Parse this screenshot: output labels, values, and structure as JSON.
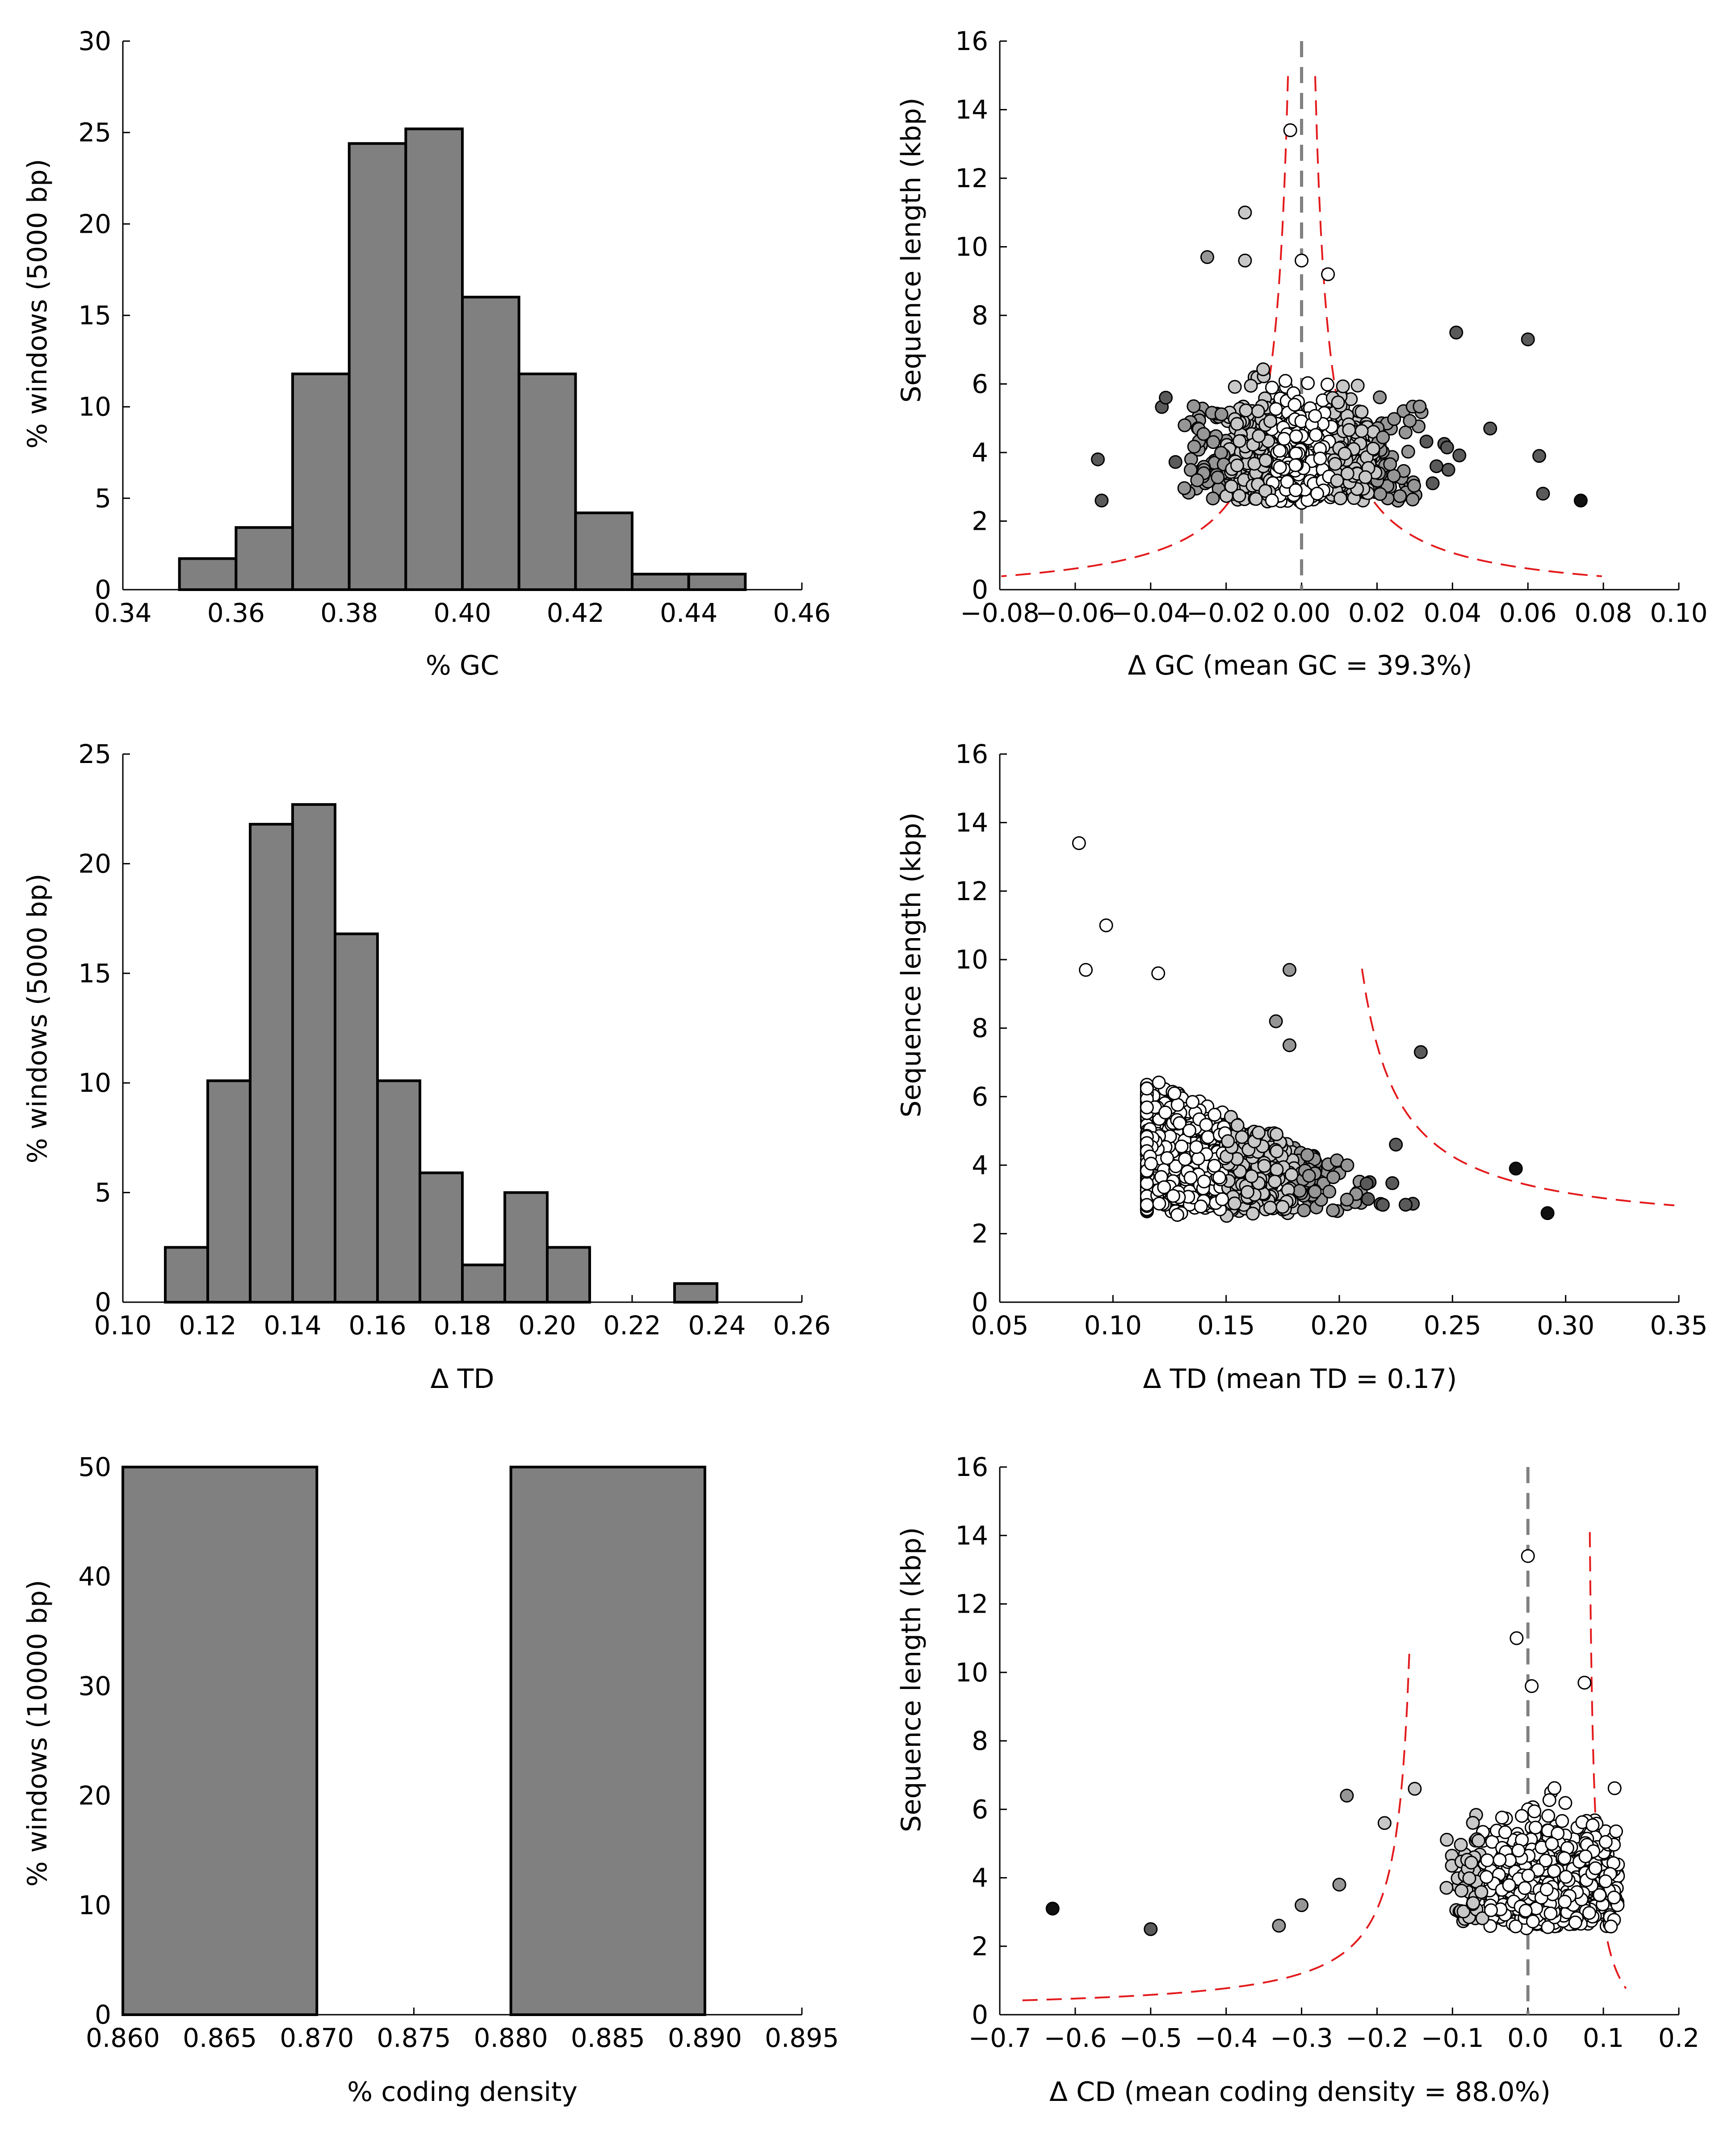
{
  "figure": {
    "description_free": true
  },
  "chart_data": [
    {
      "id": "gc-hist",
      "type": "bar",
      "xlabel": "% GC",
      "ylabel": "% windows (5000 bp)",
      "xlim": [
        0.34,
        0.46
      ],
      "ylim": [
        0,
        30
      ],
      "xticks": [
        0.34,
        0.36,
        0.38,
        0.4,
        0.42,
        0.44,
        0.46
      ],
      "xtick_labels": [
        "0.34",
        "0.36",
        "0.38",
        "0.40",
        "0.42",
        "0.44",
        "0.46"
      ],
      "yticks": [
        0,
        5,
        10,
        15,
        20,
        25,
        30
      ],
      "ytick_labels": [
        "0",
        "5",
        "10",
        "15",
        "20",
        "25",
        "30"
      ],
      "bin_edges": [
        0.35,
        0.36,
        0.37,
        0.38,
        0.39,
        0.4,
        0.41,
        0.42,
        0.43,
        0.44,
        0.45
      ],
      "values": [
        1.7,
        3.4,
        11.8,
        24.4,
        25.2,
        16.0,
        11.8,
        4.2,
        0.85,
        0.85
      ],
      "bar_color": "#808080"
    },
    {
      "id": "gc-scatter",
      "type": "scatter",
      "xlabel": "Δ GC (mean GC = 39.3%)",
      "ylabel": "Sequence length (kbp)",
      "xlim": [
        -0.08,
        0.1
      ],
      "ylim": [
        0,
        16
      ],
      "xticks": [
        -0.08,
        -0.06,
        -0.04,
        -0.02,
        0.0,
        0.02,
        0.04,
        0.06,
        0.08,
        0.1
      ],
      "xtick_labels": [
        "−0.08",
        "−0.06",
        "−0.04",
        "−0.02",
        "0.00",
        "0.02",
        "0.04",
        "0.06",
        "0.08",
        "0.10"
      ],
      "yticks": [
        0,
        2,
        4,
        6,
        8,
        10,
        12,
        14,
        16
      ],
      "ytick_labels": [
        "0",
        "2",
        "4",
        "6",
        "8",
        "10",
        "12",
        "14",
        "16"
      ],
      "notable_points": [
        {
          "x": -0.003,
          "y": 13.4,
          "shade": "white"
        },
        {
          "x": -0.015,
          "y": 11.0,
          "shade": "lightgray"
        },
        {
          "x": -0.025,
          "y": 9.7,
          "shade": "gray"
        },
        {
          "x": -0.015,
          "y": 9.6,
          "shade": "lightgray"
        },
        {
          "x": 0.0,
          "y": 9.6,
          "shade": "white"
        },
        {
          "x": 0.007,
          "y": 9.2,
          "shade": "white"
        },
        {
          "x": 0.041,
          "y": 7.5,
          "shade": "darkgray"
        },
        {
          "x": 0.06,
          "y": 7.3,
          "shade": "darkgray"
        },
        {
          "x": 0.074,
          "y": 2.6,
          "shade": "black"
        },
        {
          "x": -0.054,
          "y": 3.8,
          "shade": "darkgray"
        },
        {
          "x": -0.053,
          "y": 2.6,
          "shade": "darkgray"
        },
        {
          "x": -0.036,
          "y": 5.6,
          "shade": "darkgray"
        },
        {
          "x": 0.05,
          "y": 4.7,
          "shade": "darkgray"
        },
        {
          "x": 0.063,
          "y": 3.9,
          "shade": "darkgray"
        },
        {
          "x": 0.064,
          "y": 2.8,
          "shade": "darkgray"
        }
      ],
      "cluster": {
        "x_range": [
          -0.04,
          0.04
        ],
        "y_range": [
          2.5,
          7.2
        ],
        "x_center": 0.0
      },
      "vline": 0.0,
      "threshold_curve": "y = k / |x|",
      "threshold_color": "#e31a1c"
    },
    {
      "id": "td-hist",
      "type": "bar",
      "xlabel": "Δ TD",
      "ylabel": "% windows (5000 bp)",
      "xlim": [
        0.1,
        0.26
      ],
      "ylim": [
        0,
        25
      ],
      "xticks": [
        0.1,
        0.12,
        0.14,
        0.16,
        0.18,
        0.2,
        0.22,
        0.24,
        0.26
      ],
      "xtick_labels": [
        "0.10",
        "0.12",
        "0.14",
        "0.16",
        "0.18",
        "0.20",
        "0.22",
        "0.24",
        "0.26"
      ],
      "yticks": [
        0,
        5,
        10,
        15,
        20,
        25
      ],
      "ytick_labels": [
        "0",
        "5",
        "10",
        "15",
        "20",
        "25"
      ],
      "bin_edges": [
        0.11,
        0.12,
        0.13,
        0.14,
        0.15,
        0.16,
        0.17,
        0.18,
        0.19,
        0.2,
        0.21,
        0.22,
        0.23,
        0.24
      ],
      "values": [
        2.5,
        10.1,
        21.8,
        22.7,
        16.8,
        10.1,
        5.9,
        1.7,
        5.0,
        2.5,
        0,
        0,
        0.85
      ],
      "bar_color": "#808080"
    },
    {
      "id": "td-scatter",
      "type": "scatter",
      "xlabel": "Δ TD (mean TD = 0.17)",
      "ylabel": "Sequence length (kbp)",
      "xlim": [
        0.05,
        0.35
      ],
      "ylim": [
        0,
        16
      ],
      "xticks": [
        0.05,
        0.1,
        0.15,
        0.2,
        0.25,
        0.3,
        0.35
      ],
      "xtick_labels": [
        "0.05",
        "0.10",
        "0.15",
        "0.20",
        "0.25",
        "0.30",
        "0.35"
      ],
      "yticks": [
        0,
        2,
        4,
        6,
        8,
        10,
        12,
        14,
        16
      ],
      "ytick_labels": [
        "0",
        "2",
        "4",
        "6",
        "8",
        "10",
        "12",
        "14",
        "16"
      ],
      "notable_points": [
        {
          "x": 0.085,
          "y": 13.4,
          "shade": "white"
        },
        {
          "x": 0.097,
          "y": 11.0,
          "shade": "white"
        },
        {
          "x": 0.088,
          "y": 9.7,
          "shade": "white"
        },
        {
          "x": 0.12,
          "y": 9.6,
          "shade": "white"
        },
        {
          "x": 0.178,
          "y": 9.7,
          "shade": "gray"
        },
        {
          "x": 0.172,
          "y": 8.2,
          "shade": "gray"
        },
        {
          "x": 0.236,
          "y": 7.3,
          "shade": "darkgray"
        },
        {
          "x": 0.278,
          "y": 3.9,
          "shade": "black"
        },
        {
          "x": 0.292,
          "y": 2.6,
          "shade": "black"
        },
        {
          "x": 0.178,
          "y": 7.5,
          "shade": "gray"
        },
        {
          "x": 0.225,
          "y": 4.6,
          "shade": "darkgray"
        }
      ],
      "cluster": {
        "x_range": [
          0.1,
          0.27
        ],
        "y_range": [
          2.5,
          7.2
        ]
      },
      "threshold_curve": "y = k / (x - x0)",
      "threshold_color": "#e31a1c"
    },
    {
      "id": "cd-hist",
      "type": "bar",
      "xlabel": "% coding density",
      "ylabel": "% windows (10000 bp)",
      "xlim": [
        0.86,
        0.895
      ],
      "ylim": [
        0,
        50
      ],
      "xticks": [
        0.86,
        0.865,
        0.87,
        0.875,
        0.88,
        0.885,
        0.89,
        0.895
      ],
      "xtick_labels": [
        "0.860",
        "0.865",
        "0.870",
        "0.875",
        "0.880",
        "0.885",
        "0.890",
        "0.895"
      ],
      "yticks": [
        0,
        10,
        20,
        30,
        40,
        50
      ],
      "ytick_labels": [
        "0",
        "10",
        "20",
        "30",
        "40",
        "50"
      ],
      "bin_edges": [
        0.86,
        0.87,
        0.88,
        0.89
      ],
      "values": [
        50,
        0,
        50
      ],
      "bar_color": "#808080"
    },
    {
      "id": "cd-scatter",
      "type": "scatter",
      "xlabel": "Δ CD (mean coding density = 88.0%)",
      "ylabel": "Sequence length (kbp)",
      "xlim": [
        -0.7,
        0.2
      ],
      "ylim": [
        0,
        16
      ],
      "xticks": [
        -0.7,
        -0.6,
        -0.5,
        -0.4,
        -0.3,
        -0.2,
        -0.1,
        0.0,
        0.1,
        0.2
      ],
      "xtick_labels": [
        "−0.7",
        "−0.6",
        "−0.5",
        "−0.4",
        "−0.3",
        "−0.2",
        "−0.1",
        "0.0",
        "0.1",
        "0.2"
      ],
      "yticks": [
        0,
        2,
        4,
        6,
        8,
        10,
        12,
        14,
        16
      ],
      "ytick_labels": [
        "0",
        "2",
        "4",
        "6",
        "8",
        "10",
        "12",
        "14",
        "16"
      ],
      "notable_points": [
        {
          "x": 0.0,
          "y": 13.4,
          "shade": "white"
        },
        {
          "x": -0.015,
          "y": 11.0,
          "shade": "white"
        },
        {
          "x": 0.005,
          "y": 9.6,
          "shade": "white"
        },
        {
          "x": 0.075,
          "y": 9.7,
          "shade": "white"
        },
        {
          "x": -0.63,
          "y": 3.1,
          "shade": "black"
        },
        {
          "x": -0.5,
          "y": 2.5,
          "shade": "darkgray"
        },
        {
          "x": -0.33,
          "y": 2.6,
          "shade": "gray"
        },
        {
          "x": -0.3,
          "y": 3.2,
          "shade": "gray"
        },
        {
          "x": -0.24,
          "y": 6.4,
          "shade": "gray"
        },
        {
          "x": -0.25,
          "y": 3.8,
          "shade": "gray"
        },
        {
          "x": -0.19,
          "y": 5.6,
          "shade": "lightgray"
        },
        {
          "x": -0.15,
          "y": 6.6,
          "shade": "lightgray"
        }
      ],
      "cluster": {
        "x_range": [
          -0.23,
          0.12
        ],
        "y_range": [
          2.5,
          7.2
        ]
      },
      "vline": 0.0,
      "threshold_curve": "y = k / |x|",
      "threshold_color": "#e31a1c"
    }
  ]
}
